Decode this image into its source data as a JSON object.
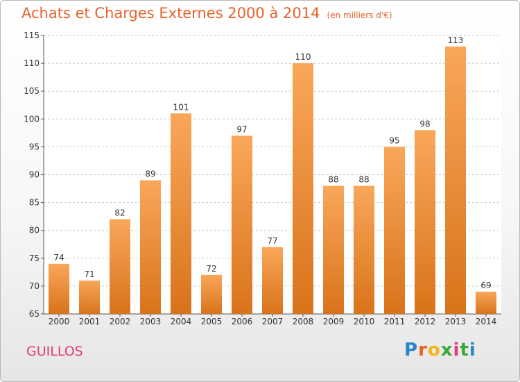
{
  "header": {
    "title": "Achats et Charges Externes 2000 à 2014",
    "subtitle": "(en milliers d'€)"
  },
  "footer": {
    "place": "GUILLOS",
    "logo_letters": [
      "P",
      "r",
      "o",
      "x",
      "i",
      "t",
      "i"
    ],
    "logo_colors": [
      "#2a86c8",
      "#e8622a",
      "#f2b519",
      "#3aaa35",
      "#e23b7c",
      "#3aaa35",
      "#2a86c8"
    ]
  },
  "colors": {
    "bar_light": "#f9a75a",
    "bar_dark": "#d9731a",
    "grid": "#c8c8c8"
  },
  "chart_data": {
    "type": "bar",
    "title": "Achats et Charges Externes 2000 à 2014",
    "subtitle": "(en milliers d'€)",
    "categories": [
      "2000",
      "2001",
      "2002",
      "2003",
      "2004",
      "2005",
      "2006",
      "2007",
      "2008",
      "2009",
      "2010",
      "2011",
      "2012",
      "2013",
      "2014"
    ],
    "values": [
      74,
      71,
      82,
      89,
      101,
      72,
      97,
      77,
      110,
      88,
      88,
      95,
      98,
      113,
      69
    ],
    "ylim": [
      65,
      115
    ],
    "yticks": [
      65,
      70,
      75,
      80,
      85,
      90,
      95,
      100,
      105,
      110,
      115
    ],
    "grid": true,
    "legend": "none"
  }
}
